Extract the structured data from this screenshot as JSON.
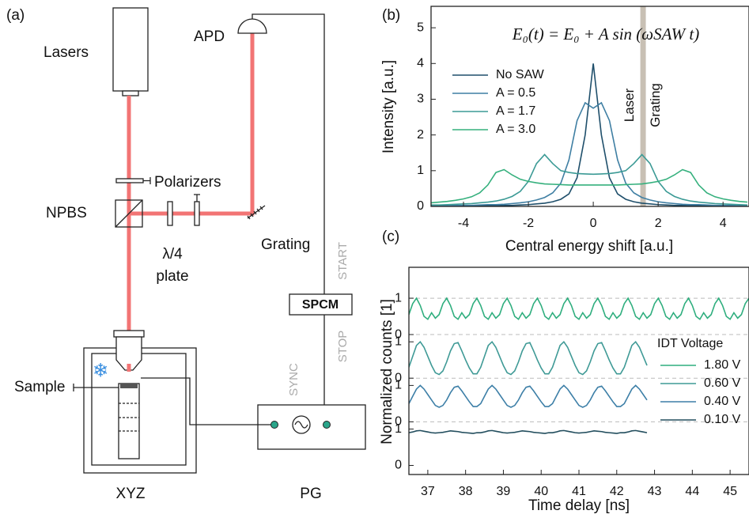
{
  "diagram": {
    "panel_label": "(a)",
    "lasers": "Lasers",
    "apd": "APD",
    "polarizers": "Polarizers",
    "npbs": "NPBS",
    "waveplate": [
      "λ/4",
      "plate"
    ],
    "grating": "Grating",
    "sample": "Sample",
    "stage": "XYZ",
    "pg": "PG",
    "spcm": "SPCM",
    "start": "START",
    "stop": "STOP",
    "sync": "SYNC"
  },
  "chart_data": [
    {
      "type": "line",
      "panel_label": "(b)",
      "annotation": "E₀(t) = E₀ + A sin (ωSAW t)",
      "xlabel": "Central energy shift [a.u.]",
      "ylabel": "Intensity [a.u.]",
      "x": [
        -5,
        -4.75,
        -4.5,
        -4.25,
        -4,
        -3.75,
        -3.5,
        -3.25,
        -3,
        -2.75,
        -2.5,
        -2.25,
        -2,
        -1.75,
        -1.5,
        -1.25,
        -1,
        -0.75,
        -0.5,
        -0.25,
        0,
        0.25,
        0.5,
        0.75,
        1,
        1.25,
        1.5,
        1.75,
        2,
        2.25,
        2.5,
        2.75,
        3,
        3.25,
        3.5,
        3.75,
        4,
        4.25,
        4.5,
        4.75
      ],
      "series": [
        {
          "name": "No SAW",
          "color": "#1f4f6b",
          "values": [
            0.01,
            0.01,
            0.01,
            0.01,
            0.01,
            0.02,
            0.02,
            0.02,
            0.02,
            0.03,
            0.03,
            0.04,
            0.05,
            0.07,
            0.09,
            0.13,
            0.2,
            0.35,
            0.8,
            2.0,
            4.0,
            2.0,
            0.8,
            0.35,
            0.2,
            0.13,
            0.09,
            0.07,
            0.05,
            0.04,
            0.03,
            0.03,
            0.02,
            0.02,
            0.02,
            0.02,
            0.01,
            0.01,
            0.01,
            0.01
          ]
        },
        {
          "name": "A = 0.5",
          "color": "#3f7fa3",
          "values": [
            0.02,
            0.02,
            0.02,
            0.03,
            0.03,
            0.03,
            0.04,
            0.05,
            0.05,
            0.06,
            0.08,
            0.1,
            0.13,
            0.18,
            0.25,
            0.38,
            0.65,
            1.3,
            2.4,
            2.9,
            2.75,
            2.9,
            2.4,
            1.3,
            0.65,
            0.38,
            0.25,
            0.18,
            0.13,
            0.1,
            0.08,
            0.06,
            0.05,
            0.05,
            0.04,
            0.03,
            0.03,
            0.03,
            0.02,
            0.02
          ]
        },
        {
          "name": "A = 1.7",
          "color": "#3b9a95",
          "values": [
            0.04,
            0.04,
            0.05,
            0.06,
            0.07,
            0.08,
            0.1,
            0.12,
            0.15,
            0.2,
            0.28,
            0.42,
            0.7,
            1.2,
            1.45,
            1.2,
            1.0,
            0.95,
            0.92,
            0.91,
            0.9,
            0.91,
            0.92,
            0.95,
            1.0,
            1.2,
            1.45,
            1.2,
            0.7,
            0.42,
            0.28,
            0.2,
            0.15,
            0.12,
            0.1,
            0.08,
            0.07,
            0.06,
            0.05,
            0.04
          ]
        },
        {
          "name": "A = 3.0",
          "color": "#35b07d",
          "values": [
            0.1,
            0.12,
            0.14,
            0.17,
            0.21,
            0.27,
            0.38,
            0.6,
            0.95,
            1.03,
            0.88,
            0.76,
            0.7,
            0.66,
            0.63,
            0.62,
            0.61,
            0.6,
            0.6,
            0.6,
            0.6,
            0.6,
            0.6,
            0.6,
            0.61,
            0.62,
            0.63,
            0.66,
            0.7,
            0.76,
            0.88,
            1.03,
            0.95,
            0.6,
            0.38,
            0.27,
            0.21,
            0.17,
            0.14,
            0.12
          ]
        }
      ],
      "xlim": [
        -5,
        4.8
      ],
      "ylim": [
        0,
        5.6
      ],
      "xticks": [
        -4,
        -2,
        0,
        2,
        4
      ],
      "yticks": [
        0,
        1,
        2,
        3,
        4,
        5
      ],
      "legend": "upper left",
      "band": {
        "xlim": [
          1.45,
          1.62
        ],
        "color": "#c8c0b4",
        "labels": [
          "Laser",
          "Grating"
        ]
      }
    },
    {
      "type": "line",
      "panel_label": "(c)",
      "xlabel": "Time delay [ns]",
      "ylabel": "Normalized counts [1]",
      "legend_title": "IDT Voltage",
      "x": [
        36.5,
        36.6,
        36.7,
        36.8,
        36.9,
        37,
        37.1,
        37.2,
        37.3,
        37.4,
        37.5,
        37.6,
        37.7,
        37.8,
        37.9,
        38,
        38.1,
        38.2,
        38.3,
        38.4,
        38.5,
        38.6,
        38.7,
        38.8,
        38.9,
        39,
        39.1,
        39.2,
        39.3,
        39.4,
        39.5,
        39.6,
        39.7,
        39.8,
        39.9,
        40,
        40.1,
        40.2,
        40.3,
        40.4,
        40.5,
        40.6,
        40.7,
        40.8,
        40.9,
        41,
        41.1,
        41.2,
        41.3,
        41.4,
        41.5,
        41.6,
        41.7,
        41.8,
        41.9,
        42,
        42.1,
        42.2,
        42.3,
        42.4,
        42.5,
        42.6,
        42.7,
        42.8,
        42.9,
        43,
        43.1,
        43.2,
        43.3,
        43.4,
        43.5,
        43.6,
        43.7,
        43.8,
        43.9,
        44,
        44.1,
        44.2,
        44.3,
        44.4,
        44.5,
        44.6,
        44.7,
        44.8,
        44.9,
        45,
        45.1,
        45.2,
        45.3,
        45.4,
        45.5
      ],
      "series": [
        {
          "name": "1.80 V",
          "color": "#2fae7e",
          "values": [
            4.15,
            4.45,
            4.6,
            4.4,
            4.1,
            4.02,
            4.2,
            4.05,
            4.15,
            4.45,
            4.6,
            4.4,
            4.1,
            4.02,
            4.2,
            4.05,
            4.15,
            4.45,
            4.6,
            4.4,
            4.1,
            4.02,
            4.2,
            4.05,
            4.15,
            4.45,
            4.6,
            4.4,
            4.1,
            4.02,
            4.2,
            4.05,
            4.15,
            4.45,
            4.6,
            4.4,
            4.1,
            4.02,
            4.2,
            4.05,
            4.15,
            4.45,
            4.6,
            4.4,
            4.1,
            4.02,
            4.2,
            4.05,
            4.15,
            4.45,
            4.6,
            4.4,
            4.1,
            4.02,
            4.2,
            4.05,
            4.15,
            4.45,
            4.6,
            4.4,
            4.1,
            4.02,
            4.2,
            4.05,
            4.15,
            4.45,
            4.6,
            4.4,
            4.1,
            4.02,
            4.2,
            4.05,
            4.15,
            4.45,
            4.6,
            4.4,
            4.1,
            4.02,
            4.2,
            4.05,
            4.15,
            4.45,
            4.6,
            4.4,
            4.1,
            4.02,
            4.2,
            4.05,
            4.15,
            4.45,
            4.6
          ]
        },
        {
          "name": "0.60 V",
          "color": "#3f9a96",
          "values": [
            2.7,
            3.0,
            3.3,
            3.4,
            3.25,
            3.0,
            2.75,
            2.55,
            2.5,
            2.6,
            2.85,
            3.15,
            3.35,
            3.38,
            3.15,
            2.9,
            2.68,
            2.52,
            2.52,
            2.7,
            3.0,
            3.3,
            3.4,
            3.25,
            3.0,
            2.75,
            2.55,
            2.5,
            2.6,
            2.85,
            3.15,
            3.35,
            3.38,
            3.15,
            2.9,
            2.68,
            2.52,
            2.52,
            2.7,
            3.0,
            3.3,
            3.4,
            3.25,
            3.0,
            2.75,
            2.55,
            2.5,
            2.6,
            2.85,
            3.15,
            3.35,
            3.38,
            3.15,
            2.9,
            2.68,
            2.52,
            2.52,
            2.7,
            3.0,
            3.3,
            3.4,
            3.25,
            3.0,
            2.75,
            null,
            null,
            null,
            null,
            null,
            null,
            null,
            null,
            null,
            null,
            null,
            null,
            null,
            null,
            null,
            null,
            null,
            null,
            null,
            null,
            null,
            null,
            null,
            null,
            null,
            null,
            null
          ]
        },
        {
          "name": "0.40 V",
          "color": "#3d7fa7",
          "values": [
            1.7,
            1.9,
            2.1,
            2.2,
            2.1,
            1.95,
            1.8,
            1.65,
            1.6,
            1.65,
            1.8,
            2.0,
            2.15,
            2.18,
            2.05,
            1.9,
            1.75,
            1.62,
            1.62,
            1.7,
            1.9,
            2.1,
            2.2,
            2.1,
            1.95,
            1.8,
            1.65,
            1.6,
            1.65,
            1.8,
            2.0,
            2.15,
            2.18,
            2.05,
            1.9,
            1.75,
            1.62,
            1.62,
            1.7,
            1.9,
            2.1,
            2.2,
            2.1,
            1.95,
            1.8,
            1.65,
            1.6,
            1.65,
            1.8,
            2.0,
            2.15,
            2.18,
            2.05,
            1.9,
            1.75,
            1.62,
            1.62,
            1.7,
            1.9,
            2.1,
            2.2,
            2.1,
            1.95,
            1.8,
            null,
            null,
            null,
            null,
            null,
            null,
            null,
            null,
            null,
            null,
            null,
            null,
            null,
            null,
            null,
            null,
            null,
            null,
            null,
            null,
            null,
            null,
            null,
            null,
            null,
            null,
            null
          ]
        },
        {
          "name": "0.10 V",
          "color": "#234e5e",
          "values": [
            0.9,
            0.92,
            0.95,
            0.96,
            0.94,
            0.92,
            0.9,
            0.89,
            0.9,
            0.91,
            0.93,
            0.95,
            0.94,
            0.93,
            0.91,
            0.9,
            0.89,
            0.88,
            0.9,
            0.9,
            0.92,
            0.95,
            0.96,
            0.94,
            0.92,
            0.9,
            0.89,
            0.9,
            0.91,
            0.93,
            0.95,
            0.94,
            0.93,
            0.91,
            0.9,
            0.89,
            0.88,
            0.9,
            0.9,
            0.92,
            0.95,
            0.96,
            0.94,
            0.92,
            0.9,
            0.89,
            0.9,
            0.91,
            0.93,
            0.95,
            0.94,
            0.93,
            0.91,
            0.9,
            0.89,
            0.88,
            0.9,
            0.9,
            0.92,
            0.95,
            0.96,
            0.94,
            0.92,
            0.9,
            null,
            null,
            null,
            null,
            null,
            null,
            null,
            null,
            null,
            null,
            null,
            null,
            null,
            null,
            null,
            null,
            null,
            null,
            null,
            null,
            null,
            null,
            null,
            null,
            null,
            null,
            null
          ]
        }
      ],
      "xlim": [
        36.5,
        45.5
      ],
      "ylim": [
        -0.25,
        5.45
      ],
      "xticks": [
        37,
        38,
        39,
        40,
        41,
        42,
        43,
        44,
        45
      ],
      "yticks": [
        0,
        1,
        {
          "value": 1.2,
          "label": "0"
        },
        {
          "value": 2.2,
          "label": "1"
        },
        {
          "value": 2.4,
          "label": "0"
        },
        {
          "value": 3.4,
          "label": "1"
        },
        {
          "value": 3.6,
          "label": "0"
        },
        {
          "value": 4.6,
          "label": "1"
        }
      ],
      "hlines": [
        1.2,
        2.4,
        3.6,
        4.6
      ],
      "legend": "center right"
    }
  ]
}
